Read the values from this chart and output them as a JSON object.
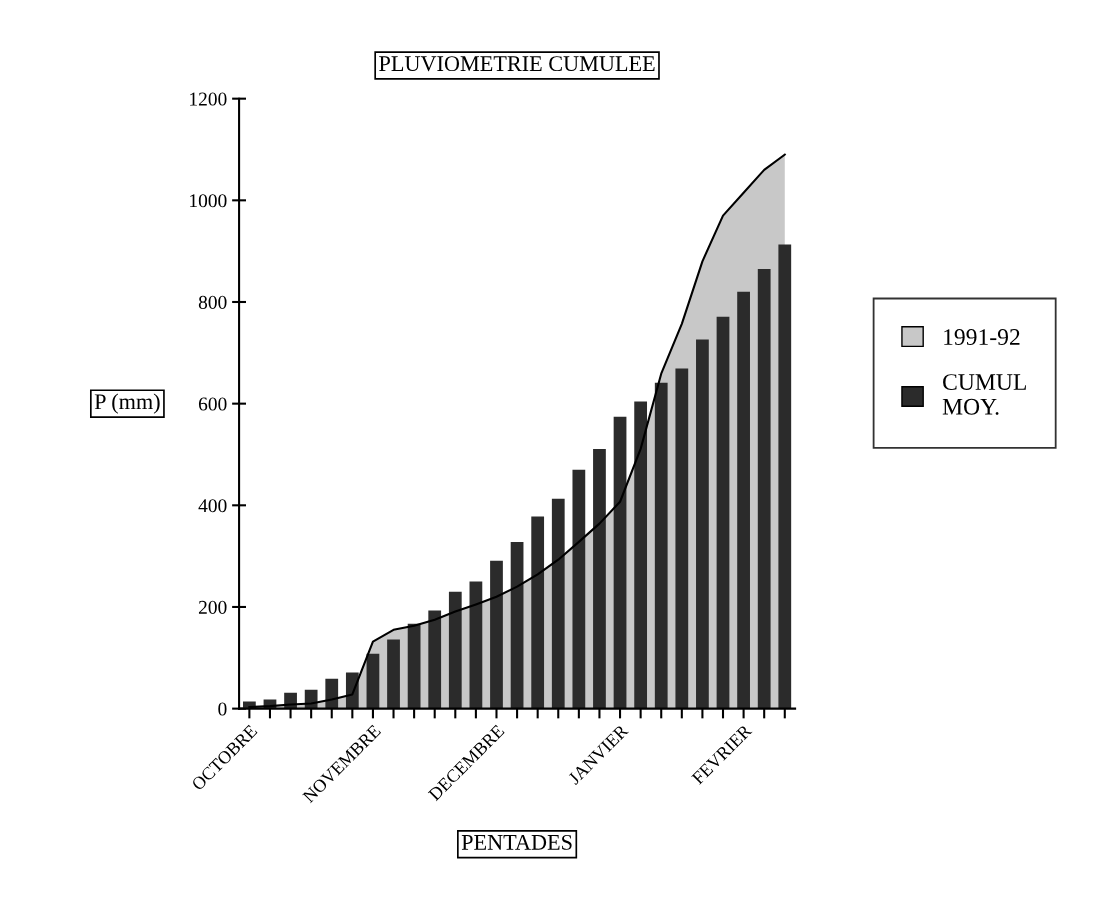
{
  "chart_data": {
    "type": "bar",
    "title": "PLUVIOMETRIE CUMULEE",
    "xlabel": "PENTADES",
    "ylabel": "P (mm)",
    "categories": [
      "OCTOBRE",
      null,
      null,
      null,
      null,
      null,
      "NOVEMBRE",
      null,
      null,
      null,
      null,
      null,
      "DECEMBRE",
      null,
      null,
      null,
      null,
      null,
      "JANVIER",
      null,
      null,
      null,
      null,
      null,
      "FEVRIER",
      null,
      null
    ],
    "series": [
      {
        "name": "1991-92",
        "type": "area",
        "color": "#c8c8c8",
        "values": [
          3,
          5,
          8,
          10,
          18,
          28,
          132,
          155,
          163,
          175,
          191,
          205,
          220,
          240,
          264,
          293,
          328,
          364,
          407,
          511,
          659,
          757,
          880,
          970,
          1015,
          1060,
          1090
        ]
      },
      {
        "name": "CUMUL\nMOY.",
        "color": "#2b2b2b",
        "values": [
          14,
          18,
          31,
          37,
          59,
          71,
          108,
          136,
          167,
          193,
          230,
          250,
          291,
          328,
          378,
          413,
          470,
          511,
          574,
          604,
          641,
          669,
          726,
          771,
          820,
          865,
          913
        ]
      }
    ],
    "ylim": [
      0,
      1200
    ],
    "yticks": [
      0,
      200,
      400,
      600,
      800,
      1000,
      1200
    ],
    "legend": "right"
  }
}
